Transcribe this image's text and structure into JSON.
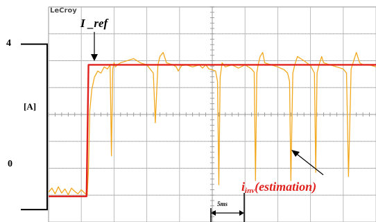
{
  "chart_data": {
    "type": "line",
    "brand": "LeCroy",
    "title": "",
    "xlabel": "",
    "ylabel": "[A]",
    "y_ticks": [
      "4",
      "0"
    ],
    "ylim": [
      -0.3,
      4.9
    ],
    "xlim": [
      0,
      50
    ],
    "time_scale_label": "5ms",
    "grid": true,
    "colors": {
      "reference": "#e0201c",
      "estimation": "#f2a81d",
      "estimation_label": "#e0201c",
      "grid": "#b5b5b5"
    },
    "annotations": {
      "reference_label": "I _ref",
      "estimation_label_main": "i",
      "estimation_label_sub": "inv",
      "estimation_label_tail": "(estimation)"
    },
    "series": [
      {
        "name": "I _ref",
        "x": [
          0,
          5.8,
          6.1,
          50
        ],
        "y": [
          0.32,
          0.32,
          3.5,
          3.5
        ]
      },
      {
        "name": "i_inv(estimation)",
        "x": [
          0,
          0.5,
          1.0,
          1.5,
          2.0,
          2.5,
          3.0,
          3.5,
          4.0,
          4.5,
          5.0,
          5.5,
          5.9,
          6.1,
          6.3,
          6.6,
          7.0,
          7.5,
          8.0,
          8.5,
          9.0,
          9.4,
          9.6,
          9.8,
          10.0,
          10.2,
          10.5,
          11.0,
          12.0,
          13.0,
          14.0,
          15.0,
          16.0,
          16.3,
          16.7,
          17.0,
          17.5,
          18.0,
          19.0,
          19.5,
          19.8,
          20.3,
          21.0,
          22.0,
          23.0,
          23.5,
          24.0,
          24.5,
          25.0,
          25.5,
          25.8,
          26.0,
          26.2,
          26.5,
          27.0,
          28.0,
          29.0,
          30.0,
          31.0,
          31.4,
          31.6,
          31.8,
          32.0,
          32.3,
          32.7,
          33.0,
          34.0,
          35.0,
          36.0,
          36.5,
          36.8,
          37.0,
          37.3,
          37.6,
          38.0,
          39.0,
          40.0,
          40.6,
          40.8,
          41.0,
          41.3,
          41.7,
          42.0,
          43.0,
          44.0,
          45.0,
          45.5,
          45.8,
          46.2,
          46.6,
          47.0,
          47.5,
          48.0,
          49.0,
          50.0
        ],
        "y": [
          0.42,
          0.52,
          0.38,
          0.55,
          0.4,
          0.5,
          0.36,
          0.52,
          0.44,
          0.38,
          0.48,
          0.4,
          0.35,
          1.0,
          2.4,
          2.9,
          3.2,
          3.35,
          3.3,
          3.45,
          3.4,
          3.5,
          1.3,
          3.4,
          3.55,
          3.45,
          3.5,
          3.55,
          3.6,
          3.65,
          3.55,
          3.5,
          3.3,
          2.1,
          3.5,
          3.7,
          3.8,
          3.55,
          3.5,
          3.45,
          3.35,
          3.48,
          3.5,
          3.45,
          3.5,
          3.42,
          3.5,
          3.4,
          3.38,
          3.35,
          3.1,
          0.6,
          3.2,
          3.55,
          3.45,
          3.5,
          3.42,
          3.5,
          3.4,
          3.32,
          0.7,
          3.3,
          3.5,
          3.7,
          3.8,
          3.55,
          3.5,
          3.45,
          3.38,
          3.3,
          3.1,
          0.7,
          3.3,
          3.5,
          3.7,
          3.6,
          3.48,
          3.3,
          0.9,
          3.3,
          3.5,
          3.7,
          3.55,
          3.5,
          3.45,
          3.4,
          3.3,
          0.8,
          3.4,
          3.6,
          3.8,
          3.55,
          3.5,
          3.5,
          3.45
        ]
      }
    ]
  }
}
